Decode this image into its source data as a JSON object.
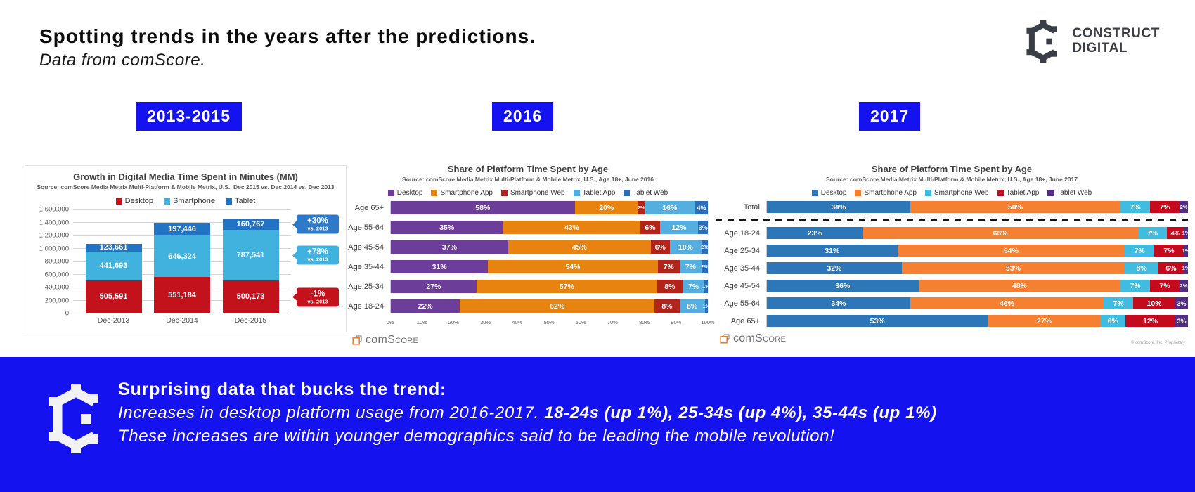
{
  "header": {
    "title": "Spotting trends in the years after the predictions.",
    "subtitle": "Data from comScore.",
    "logo_line1": "CONSTRUCT",
    "logo_line2": "DIGITAL"
  },
  "year_badges": [
    {
      "label": "2013-2015"
    },
    {
      "label": "2016"
    },
    {
      "label": "2017"
    }
  ],
  "comscore_logo": {
    "prefix": "com",
    "suffix": "Score"
  },
  "banner": {
    "background": "#1512f0",
    "heading": "Surprising data that bucks the trend:",
    "line1_italic": "Increases in desktop platform usage from 2016-2017. ",
    "line1_bold": "18-24s (up 1%), 25-34s (up 4%), 35-44s (up 1%)",
    "line2": "These increases are within younger demographics said to be leading the mobile revolution!"
  },
  "chart_data": [
    {
      "type": "bar",
      "stacked": true,
      "title": "Growth in Digital Media Time Spent in Minutes (MM)",
      "source": "Source: comScore Media Metrix Multi-Platform & Mobile Metrix, U.S., Dec 2015 vs. Dec 2014 vs. Dec 2013",
      "categories": [
        "Dec-2013",
        "Dec-2014",
        "Dec-2015"
      ],
      "series": [
        {
          "name": "Desktop",
          "color": "#c3121c",
          "values": [
            505591,
            551184,
            500173
          ]
        },
        {
          "name": "Smartphone",
          "color": "#41b2de",
          "values": [
            441693,
            646324,
            787541
          ]
        },
        {
          "name": "Tablet",
          "color": "#2273c3",
          "values": [
            123661,
            197446,
            160767
          ]
        }
      ],
      "ylim": [
        0,
        1600000
      ],
      "ytick_step": 200000,
      "callouts": [
        {
          "series": "Tablet",
          "text": "+30%",
          "sub": "vs. 2013",
          "color": "#2e7ac9"
        },
        {
          "series": "Smartphone",
          "text": "+78%",
          "sub": "vs. 2013",
          "color": "#41b2de"
        },
        {
          "series": "Desktop",
          "text": "-1%",
          "sub": "vs. 2013",
          "color": "#c3121c"
        }
      ]
    },
    {
      "type": "bar-horizontal-stacked",
      "title": "Share of Platform Time Spent by Age",
      "source": "Source: comScore Media Metrix Multi-Platform & Mobile Metrix, U.S., Age 18+, June 2016",
      "legend": [
        "Desktop",
        "Smartphone App",
        "Smartphone Web",
        "Tablet App",
        "Tablet Web"
      ],
      "series_colors": [
        "#6c3d99",
        "#e8830f",
        "#b2231a",
        "#54aee0",
        "#2a6db9"
      ],
      "categories": [
        "Age 65+",
        "Age 55-64",
        "Age 45-54",
        "Age 35-44",
        "Age 25-34",
        "Age 18-24"
      ],
      "rows": [
        [
          58,
          20,
          2,
          16,
          4
        ],
        [
          35,
          43,
          6,
          12,
          3
        ],
        [
          37,
          45,
          6,
          10,
          2
        ],
        [
          31,
          54,
          7,
          7,
          2
        ],
        [
          27,
          57,
          8,
          7,
          1
        ],
        [
          22,
          62,
          8,
          8,
          1
        ]
      ],
      "xticks": [
        "0%",
        "10%",
        "20%",
        "30%",
        "40%",
        "50%",
        "60%",
        "70%",
        "80%",
        "90%",
        "100%"
      ]
    },
    {
      "type": "bar-horizontal-stacked",
      "title": "Share of Platform Time Spent by Age",
      "source": "Source: comScore Media Metrix Multi-Platform & Mobile Metrix, U.S., Age 18+, June 2017",
      "legend": [
        "Desktop",
        "Smartphone App",
        "Smartphone Web",
        "Tablet App",
        "Tablet Web"
      ],
      "series_colors": [
        "#2d76b7",
        "#f58031",
        "#3fbcdf",
        "#c30b1d",
        "#532c83"
      ],
      "categories": [
        "Total",
        "Age 18-24",
        "Age 25-34",
        "Age 35-44",
        "Age 45-54",
        "Age 55-64",
        "Age 65+"
      ],
      "rows": [
        [
          34,
          50,
          7,
          7,
          2
        ],
        [
          23,
          66,
          7,
          4,
          1
        ],
        [
          31,
          54,
          7,
          7,
          1
        ],
        [
          32,
          53,
          8,
          6,
          1
        ],
        [
          36,
          48,
          7,
          7,
          2
        ],
        [
          34,
          46,
          7,
          10,
          3
        ],
        [
          53,
          27,
          6,
          12,
          3
        ]
      ],
      "divider_after": 0,
      "copyright": "© comScore, Inc. Proprietary"
    }
  ]
}
